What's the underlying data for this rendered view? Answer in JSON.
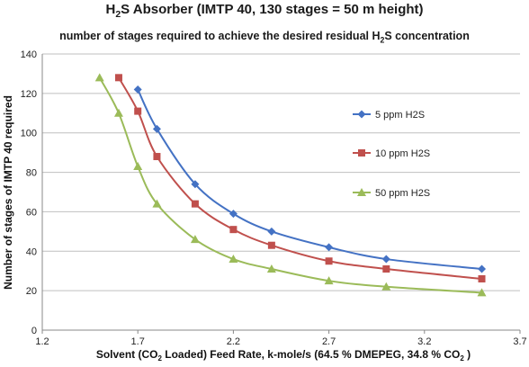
{
  "chart_data": {
    "type": "line",
    "title_parts": [
      "H",
      "2",
      "S Absorber (IMTP 40, 130 stages = 50 m height)"
    ],
    "subtitle_parts": [
      "number of stages required to achieve the desired residual H",
      "2",
      "S concentration"
    ],
    "xlabel_parts": [
      "Solvent (CO",
      "2",
      " Loaded) Feed Rate, k-mole/s (64.5 % DMEPEG, 34.8 % CO",
      "2",
      " )"
    ],
    "ylabel": "Number of stages of IMTP 40 required",
    "xlim": [
      1.2,
      3.7
    ],
    "ylim": [
      0,
      140
    ],
    "xticks": [
      "1.2",
      "1.7",
      "2.2",
      "2.7",
      "3.2",
      "3.7"
    ],
    "yticks": [
      "0",
      "20",
      "40",
      "60",
      "80",
      "100",
      "120",
      "140"
    ],
    "grid": true,
    "legend_position": "right",
    "series": [
      {
        "name": "5 ppm H2S",
        "color": "#4472c4",
        "marker": "diamond",
        "x": [
          1.7,
          1.8,
          2.0,
          2.2,
          2.4,
          2.7,
          3.0,
          3.5
        ],
        "y": [
          122,
          102,
          74,
          59,
          50,
          42,
          36,
          31
        ]
      },
      {
        "name": "10 ppm H2S",
        "color": "#c0504d",
        "marker": "square",
        "x": [
          1.6,
          1.7,
          1.8,
          2.0,
          2.2,
          2.4,
          2.7,
          3.0,
          3.5
        ],
        "y": [
          128,
          111,
          88,
          64,
          51,
          43,
          35,
          31,
          26
        ]
      },
      {
        "name": "50 ppm H2S",
        "color": "#9bbb59",
        "marker": "triangle",
        "x": [
          1.5,
          1.6,
          1.7,
          1.8,
          2.0,
          2.2,
          2.4,
          2.7,
          3.0,
          3.5
        ],
        "y": [
          128,
          110,
          83,
          64,
          46,
          36,
          31,
          25,
          22,
          19
        ]
      }
    ]
  }
}
